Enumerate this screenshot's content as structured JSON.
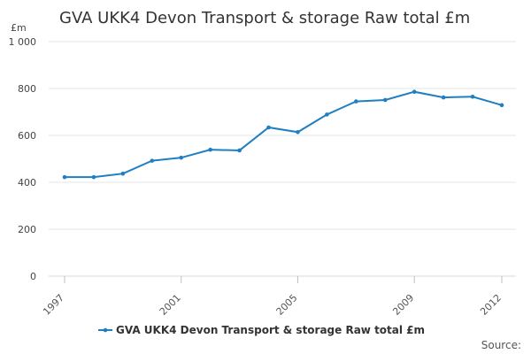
{
  "chart_data": {
    "type": "line",
    "title": "GVA UKK4 Devon Transport & storage Raw total £m",
    "ylabel": "£m",
    "xlabel": "",
    "x": [
      1997,
      1998,
      1999,
      2000,
      2001,
      2002,
      2003,
      2004,
      2005,
      2006,
      2007,
      2008,
      2009,
      2010,
      2011,
      2012
    ],
    "x_tick_labels": [
      "1997",
      "2001",
      "2005",
      "2009",
      "2012"
    ],
    "x_tick_values": [
      1997,
      2001,
      2005,
      2009,
      2012
    ],
    "y_tick_labels": [
      "0",
      "200",
      "400",
      "600",
      "800",
      "1 000"
    ],
    "y_tick_values": [
      0,
      200,
      400,
      600,
      800,
      1000
    ],
    "ylim": [
      0,
      1000
    ],
    "grid": "horizontal",
    "legend_position": "bottom",
    "series": [
      {
        "name": "GVA UKK4 Devon Transport & storage Raw total £m",
        "color": "#1f7fc1",
        "values": [
          422,
          422,
          437,
          492,
          505,
          539,
          536,
          634,
          614,
          689,
          745,
          751,
          786,
          762,
          765,
          729
        ]
      }
    ]
  },
  "footer": {
    "source_label": "Source:"
  }
}
